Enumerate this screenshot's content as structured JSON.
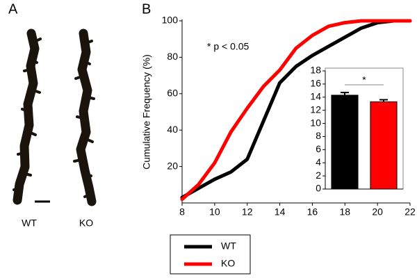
{
  "panel_a": {
    "label": "A",
    "images": [
      "WT",
      "KO"
    ]
  },
  "chart_data": [
    {
      "type": "line",
      "panel_label": "B",
      "ylabel": "Cumulative Frequency (%)",
      "annotation": "* p < 0.05",
      "x": [
        8,
        9,
        10,
        11,
        12,
        13,
        14,
        15,
        16,
        17,
        18,
        19,
        20,
        21,
        22
      ],
      "series": [
        {
          "name": "WT",
          "color": "#000000",
          "values": [
            3,
            8,
            13,
            17,
            24,
            45,
            66,
            75,
            81,
            86,
            91,
            96,
            99,
            100,
            100
          ]
        },
        {
          "name": "KO",
          "color": "#ff0000",
          "values": [
            2,
            10,
            22,
            39,
            52,
            64,
            73,
            85,
            92,
            97,
            99,
            100,
            100,
            100,
            100
          ]
        }
      ],
      "xlim": [
        8,
        22
      ],
      "xticks": [
        8,
        10,
        12,
        14,
        16,
        18,
        20,
        22
      ],
      "ylim": [
        0,
        100
      ],
      "yticks": [
        20,
        40,
        60,
        80,
        100
      ],
      "legend": "bottom"
    },
    {
      "type": "bar",
      "annotation": "*",
      "categories": [
        null,
        null
      ],
      "values": [
        14.3,
        13.3
      ],
      "errors": [
        0.4,
        0.3
      ],
      "colors": [
        "#000000",
        "#ff0000"
      ],
      "ylim": [
        0,
        18
      ],
      "yticks": [
        0,
        2,
        4,
        6,
        8,
        10,
        12,
        14,
        16,
        18
      ]
    }
  ]
}
